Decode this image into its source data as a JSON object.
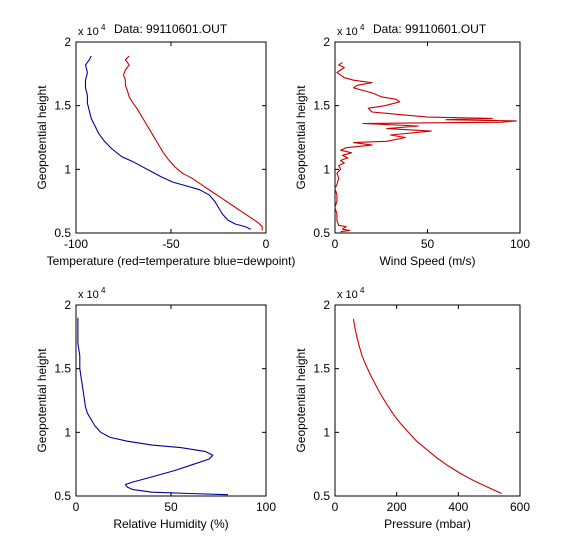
{
  "figure": {
    "background": "#ffffff"
  },
  "chart_data": [
    {
      "type": "line",
      "title": "Data: 99110601.OUT",
      "xlabel": "Temperature (red=temperature blue=dewpoint)",
      "ylabel": "Geopotential height",
      "y_multiplier_label": "x 10",
      "y_multiplier_exponent": "4",
      "xlim": [
        -100,
        0
      ],
      "ylim": [
        0.5,
        2
      ],
      "xticks": [
        -100,
        -50,
        0
      ],
      "xtick_labels": [
        "-100",
        "-50",
        "0"
      ],
      "yticks": [
        0.5,
        1,
        1.5,
        2
      ],
      "ytick_labels": [
        "0.5",
        "1",
        "1.5",
        "2"
      ],
      "grid": false,
      "series": [
        {
          "color": "#cc0000",
          "points": [
            [
              -2,
              0.52
            ],
            [
              -2,
              0.55
            ],
            [
              -4,
              0.58
            ],
            [
              -8,
              0.62
            ],
            [
              -13,
              0.67
            ],
            [
              -18,
              0.72
            ],
            [
              -24,
              0.78
            ],
            [
              -29,
              0.83
            ],
            [
              -34,
              0.88
            ],
            [
              -39,
              0.93
            ],
            [
              -44,
              0.97
            ],
            [
              -48,
              1.02
            ],
            [
              -51,
              1.07
            ],
            [
              -54,
              1.13
            ],
            [
              -56,
              1.18
            ],
            [
              -58,
              1.23
            ],
            [
              -60,
              1.28
            ],
            [
              -62,
              1.33
            ],
            [
              -64,
              1.38
            ],
            [
              -66,
              1.43
            ],
            [
              -68,
              1.48
            ],
            [
              -70,
              1.52
            ],
            [
              -72,
              1.57
            ],
            [
              -73,
              1.62
            ],
            [
              -74,
              1.66
            ],
            [
              -74,
              1.7
            ],
            [
              -75,
              1.74
            ],
            [
              -74,
              1.78
            ],
            [
              -72,
              1.82
            ],
            [
              -74,
              1.86
            ],
            [
              -72,
              1.89
            ]
          ]
        },
        {
          "color": "#00009a",
          "points": [
            [
              -8,
              0.53
            ],
            [
              -11,
              0.55
            ],
            [
              -16,
              0.57
            ],
            [
              -20,
              0.6
            ],
            [
              -23,
              0.65
            ],
            [
              -25,
              0.7
            ],
            [
              -27,
              0.75
            ],
            [
              -30,
              0.8
            ],
            [
              -35,
              0.84
            ],
            [
              -42,
              0.87
            ],
            [
              -49,
              0.9
            ],
            [
              -55,
              0.94
            ],
            [
              -60,
              0.98
            ],
            [
              -65,
              1.02
            ],
            [
              -70,
              1.06
            ],
            [
              -76,
              1.1
            ],
            [
              -81,
              1.16
            ],
            [
              -85,
              1.22
            ],
            [
              -88,
              1.28
            ],
            [
              -90,
              1.34
            ],
            [
              -92,
              1.4
            ],
            [
              -93,
              1.46
            ],
            [
              -94,
              1.52
            ],
            [
              -94,
              1.58
            ],
            [
              -95,
              1.64
            ],
            [
              -95,
              1.7
            ],
            [
              -94,
              1.76
            ],
            [
              -95,
              1.82
            ],
            [
              -93,
              1.86
            ],
            [
              -92,
              1.89
            ]
          ]
        }
      ]
    },
    {
      "type": "line",
      "title": "Data: 99110601.OUT",
      "xlabel": "Wind Speed (m/s)",
      "ylabel": "Geopotential height",
      "y_multiplier_label": "x 10",
      "y_multiplier_exponent": "4",
      "xlim": [
        0,
        100
      ],
      "ylim": [
        0.5,
        2
      ],
      "xticks": [
        0,
        50,
        100
      ],
      "xtick_labels": [
        "0",
        "50",
        "100"
      ],
      "yticks": [
        0.5,
        1,
        1.5,
        2
      ],
      "ytick_labels": [
        "0.5",
        "1",
        "1.5",
        "2"
      ],
      "grid": false,
      "series": [
        {
          "color": "#cc0000",
          "points": [
            [
              3,
              0.51
            ],
            [
              8,
              0.52
            ],
            [
              4,
              0.53
            ],
            [
              6,
              0.55
            ],
            [
              2,
              0.56
            ],
            [
              1,
              0.6
            ],
            [
              1,
              0.65
            ],
            [
              0,
              0.7
            ],
            [
              1,
              0.75
            ],
            [
              1,
              0.8
            ],
            [
              0,
              0.85
            ],
            [
              1,
              0.88
            ],
            [
              2,
              0.93
            ],
            [
              1,
              0.97
            ],
            [
              3,
              1.0
            ],
            [
              2,
              1.03
            ],
            [
              5,
              1.05
            ],
            [
              3,
              1.07
            ],
            [
              7,
              1.09
            ],
            [
              4,
              1.11
            ],
            [
              9,
              1.13
            ],
            [
              3,
              1.15
            ],
            [
              6,
              1.17
            ],
            [
              20,
              1.19
            ],
            [
              10,
              1.21
            ],
            [
              28,
              1.22
            ],
            [
              38,
              1.25
            ],
            [
              30,
              1.27
            ],
            [
              52,
              1.3
            ],
            [
              28,
              1.32
            ],
            [
              45,
              1.34
            ],
            [
              15,
              1.36
            ],
            [
              90,
              1.37
            ],
            [
              98,
              1.38
            ],
            [
              60,
              1.39
            ],
            [
              85,
              1.4
            ],
            [
              50,
              1.41
            ],
            [
              35,
              1.43
            ],
            [
              20,
              1.45
            ],
            [
              18,
              1.48
            ],
            [
              27,
              1.5
            ],
            [
              35,
              1.53
            ],
            [
              33,
              1.55
            ],
            [
              25,
              1.57
            ],
            [
              20,
              1.6
            ],
            [
              15,
              1.62
            ],
            [
              10,
              1.64
            ],
            [
              12,
              1.66
            ],
            [
              20,
              1.68
            ],
            [
              10,
              1.7
            ],
            [
              5,
              1.72
            ],
            [
              3,
              1.74
            ],
            [
              1,
              1.76
            ],
            [
              3,
              1.78
            ],
            [
              5,
              1.8
            ],
            [
              2,
              1.82
            ],
            [
              4,
              1.84
            ]
          ]
        }
      ]
    },
    {
      "type": "line",
      "title": "",
      "xlabel": "Relative Humidity (%)",
      "ylabel": "Geopotential height",
      "y_multiplier_label": "x 10",
      "y_multiplier_exponent": "4",
      "xlim": [
        0,
        100
      ],
      "ylim": [
        0.5,
        2
      ],
      "xticks": [
        0,
        50,
        100
      ],
      "xtick_labels": [
        "0",
        "50",
        "100"
      ],
      "yticks": [
        0.5,
        1,
        1.5,
        2
      ],
      "ytick_labels": [
        "0.5",
        "1",
        "1.5",
        "2"
      ],
      "grid": false,
      "series": [
        {
          "color": "#00009a",
          "points": [
            [
              80,
              0.51
            ],
            [
              60,
              0.52
            ],
            [
              40,
              0.53
            ],
            [
              30,
              0.55
            ],
            [
              27,
              0.57
            ],
            [
              26,
              0.59
            ],
            [
              30,
              0.61
            ],
            [
              40,
              0.65
            ],
            [
              52,
              0.7
            ],
            [
              62,
              0.75
            ],
            [
              70,
              0.79
            ],
            [
              72,
              0.82
            ],
            [
              68,
              0.85
            ],
            [
              55,
              0.88
            ],
            [
              40,
              0.9
            ],
            [
              27,
              0.93
            ],
            [
              18,
              0.96
            ],
            [
              13,
              1.0
            ],
            [
              10,
              1.05
            ],
            [
              8,
              1.1
            ],
            [
              6,
              1.15
            ],
            [
              5,
              1.2
            ],
            [
              4,
              1.3
            ],
            [
              3,
              1.4
            ],
            [
              2,
              1.5
            ],
            [
              2,
              1.6
            ],
            [
              1,
              1.7
            ],
            [
              1,
              1.8
            ],
            [
              1,
              1.9
            ]
          ]
        }
      ]
    },
    {
      "type": "line",
      "title": "",
      "xlabel": "Pressure (mbar)",
      "ylabel": "Geopotential height",
      "y_multiplier_label": "x 10",
      "y_multiplier_exponent": "4",
      "xlim": [
        0,
        600
      ],
      "ylim": [
        0.5,
        2
      ],
      "xticks": [
        0,
        200,
        400,
        600
      ],
      "xtick_labels": [
        "0",
        "200",
        "400",
        "600"
      ],
      "yticks": [
        0.5,
        1,
        1.5,
        2
      ],
      "ytick_labels": [
        "0.5",
        "1",
        "1.5",
        "2"
      ],
      "grid": false,
      "series": [
        {
          "color": "#cc0000",
          "points": [
            [
              540,
              0.52
            ],
            [
              495,
              0.57
            ],
            [
              450,
              0.62
            ],
            [
              405,
              0.68
            ],
            [
              365,
              0.74
            ],
            [
              330,
              0.8
            ],
            [
              295,
              0.87
            ],
            [
              265,
              0.93
            ],
            [
              238,
              1.0
            ],
            [
              212,
              1.07
            ],
            [
              190,
              1.14
            ],
            [
              168,
              1.22
            ],
            [
              148,
              1.3
            ],
            [
              130,
              1.38
            ],
            [
              115,
              1.45
            ],
            [
              100,
              1.53
            ],
            [
              88,
              1.6
            ],
            [
              78,
              1.68
            ],
            [
              70,
              1.76
            ],
            [
              63,
              1.84
            ],
            [
              60,
              1.89
            ]
          ]
        }
      ]
    }
  ]
}
